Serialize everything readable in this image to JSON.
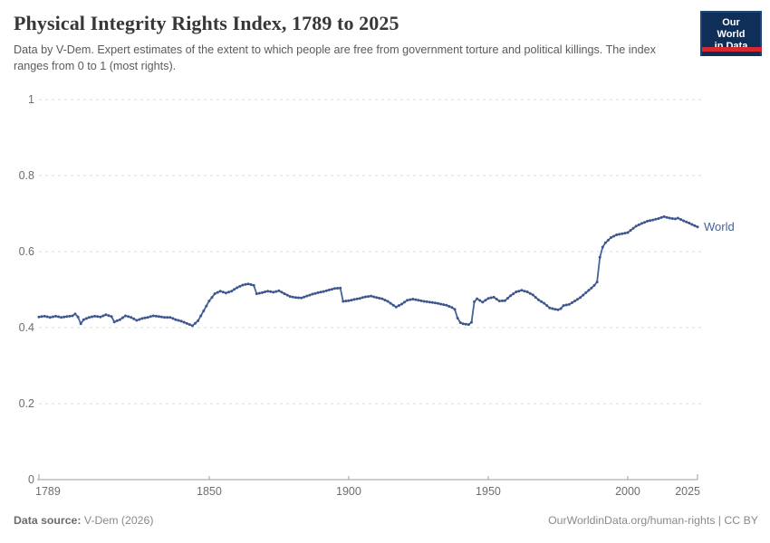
{
  "header": {
    "title": "Physical Integrity Rights Index, 1789 to 2025",
    "subtitle": "Data by V-Dem. Expert estimates of the extent to which people are free from government torture and political killings. The index ranges from 0 to 1 (most rights)."
  },
  "logo": {
    "line1": "Our World",
    "line2": "in Data"
  },
  "footer": {
    "source_label": "Data source:",
    "source_text": " V-Dem (2026)",
    "citation": "OurWorldinData.org/human-rights | CC BY"
  },
  "chart_data": {
    "type": "line",
    "title": "Physical Integrity Rights Index, 1789 to 2025",
    "xlabel": "",
    "ylabel": "",
    "xlim": [
      1789,
      2025
    ],
    "ylim": [
      0,
      1
    ],
    "grid": "horizontal-dashed",
    "legend_position": "end-of-line-label",
    "x_ticks": [
      {
        "value": 1789,
        "label": "1789"
      },
      {
        "value": 1850,
        "label": "1850"
      },
      {
        "value": 1900,
        "label": "1900"
      },
      {
        "value": 1950,
        "label": "1950"
      },
      {
        "value": 2000,
        "label": "2000"
      },
      {
        "value": 2025,
        "label": "2025"
      }
    ],
    "y_ticks": [
      {
        "value": 0,
        "label": "0"
      },
      {
        "value": 0.2,
        "label": "0.2"
      },
      {
        "value": 0.4,
        "label": "0.4"
      },
      {
        "value": 0.6,
        "label": "0.6"
      },
      {
        "value": 0.8,
        "label": "0.8"
      },
      {
        "value": 1,
        "label": "1"
      }
    ],
    "colors": {
      "line": "#486299",
      "marker": "#3d568f",
      "grid": "#dedede",
      "axis": "#9e9e9e",
      "tick_text": "#6e6e6e"
    },
    "series": [
      {
        "name": "World",
        "points": [
          [
            1789,
            0.428
          ],
          [
            1791,
            0.43
          ],
          [
            1793,
            0.427
          ],
          [
            1795,
            0.43
          ],
          [
            1797,
            0.427
          ],
          [
            1799,
            0.429
          ],
          [
            1801,
            0.431
          ],
          [
            1802,
            0.436
          ],
          [
            1803,
            0.428
          ],
          [
            1804,
            0.41
          ],
          [
            1805,
            0.421
          ],
          [
            1807,
            0.427
          ],
          [
            1809,
            0.43
          ],
          [
            1811,
            0.428
          ],
          [
            1813,
            0.434
          ],
          [
            1815,
            0.429
          ],
          [
            1816,
            0.415
          ],
          [
            1818,
            0.421
          ],
          [
            1820,
            0.431
          ],
          [
            1822,
            0.427
          ],
          [
            1824,
            0.419
          ],
          [
            1826,
            0.424
          ],
          [
            1828,
            0.427
          ],
          [
            1830,
            0.431
          ],
          [
            1832,
            0.429
          ],
          [
            1834,
            0.427
          ],
          [
            1836,
            0.427
          ],
          [
            1838,
            0.421
          ],
          [
            1840,
            0.417
          ],
          [
            1842,
            0.411
          ],
          [
            1844,
            0.405
          ],
          [
            1846,
            0.418
          ],
          [
            1848,
            0.444
          ],
          [
            1850,
            0.47
          ],
          [
            1852,
            0.489
          ],
          [
            1854,
            0.496
          ],
          [
            1856,
            0.491
          ],
          [
            1858,
            0.496
          ],
          [
            1860,
            0.505
          ],
          [
            1862,
            0.512
          ],
          [
            1864,
            0.515
          ],
          [
            1866,
            0.511
          ],
          [
            1867,
            0.489
          ],
          [
            1869,
            0.492
          ],
          [
            1871,
            0.496
          ],
          [
            1873,
            0.493
          ],
          [
            1875,
            0.497
          ],
          [
            1877,
            0.489
          ],
          [
            1879,
            0.482
          ],
          [
            1881,
            0.479
          ],
          [
            1883,
            0.478
          ],
          [
            1885,
            0.483
          ],
          [
            1887,
            0.488
          ],
          [
            1889,
            0.492
          ],
          [
            1891,
            0.495
          ],
          [
            1893,
            0.499
          ],
          [
            1895,
            0.503
          ],
          [
            1897,
            0.504
          ],
          [
            1898,
            0.469
          ],
          [
            1900,
            0.471
          ],
          [
            1902,
            0.474
          ],
          [
            1904,
            0.477
          ],
          [
            1906,
            0.481
          ],
          [
            1908,
            0.483
          ],
          [
            1910,
            0.479
          ],
          [
            1912,
            0.476
          ],
          [
            1914,
            0.469
          ],
          [
            1916,
            0.459
          ],
          [
            1917,
            0.454
          ],
          [
            1919,
            0.462
          ],
          [
            1921,
            0.472
          ],
          [
            1923,
            0.475
          ],
          [
            1925,
            0.472
          ],
          [
            1927,
            0.469
          ],
          [
            1929,
            0.467
          ],
          [
            1931,
            0.465
          ],
          [
            1933,
            0.462
          ],
          [
            1935,
            0.459
          ],
          [
            1937,
            0.453
          ],
          [
            1938,
            0.448
          ],
          [
            1939,
            0.425
          ],
          [
            1940,
            0.413
          ],
          [
            1941,
            0.41
          ],
          [
            1943,
            0.408
          ],
          [
            1944,
            0.414
          ],
          [
            1945,
            0.468
          ],
          [
            1946,
            0.476
          ],
          [
            1948,
            0.467
          ],
          [
            1950,
            0.477
          ],
          [
            1952,
            0.48
          ],
          [
            1954,
            0.47
          ],
          [
            1956,
            0.471
          ],
          [
            1958,
            0.484
          ],
          [
            1960,
            0.494
          ],
          [
            1962,
            0.498
          ],
          [
            1964,
            0.494
          ],
          [
            1966,
            0.486
          ],
          [
            1968,
            0.473
          ],
          [
            1970,
            0.464
          ],
          [
            1972,
            0.452
          ],
          [
            1974,
            0.448
          ],
          [
            1975,
            0.447
          ],
          [
            1976,
            0.45
          ],
          [
            1977,
            0.458
          ],
          [
            1979,
            0.461
          ],
          [
            1981,
            0.47
          ],
          [
            1983,
            0.479
          ],
          [
            1985,
            0.492
          ],
          [
            1987,
            0.504
          ],
          [
            1988,
            0.511
          ],
          [
            1989,
            0.52
          ],
          [
            1990,
            0.585
          ],
          [
            1991,
            0.612
          ],
          [
            1992,
            0.623
          ],
          [
            1994,
            0.637
          ],
          [
            1996,
            0.644
          ],
          [
            1998,
            0.647
          ],
          [
            2000,
            0.65
          ],
          [
            2001,
            0.656
          ],
          [
            2003,
            0.667
          ],
          [
            2005,
            0.674
          ],
          [
            2007,
            0.68
          ],
          [
            2009,
            0.683
          ],
          [
            2011,
            0.687
          ],
          [
            2013,
            0.692
          ],
          [
            2015,
            0.688
          ],
          [
            2017,
            0.686
          ],
          [
            2018,
            0.688
          ],
          [
            2020,
            0.681
          ],
          [
            2022,
            0.675
          ],
          [
            2024,
            0.668
          ],
          [
            2025,
            0.665
          ]
        ]
      }
    ]
  }
}
